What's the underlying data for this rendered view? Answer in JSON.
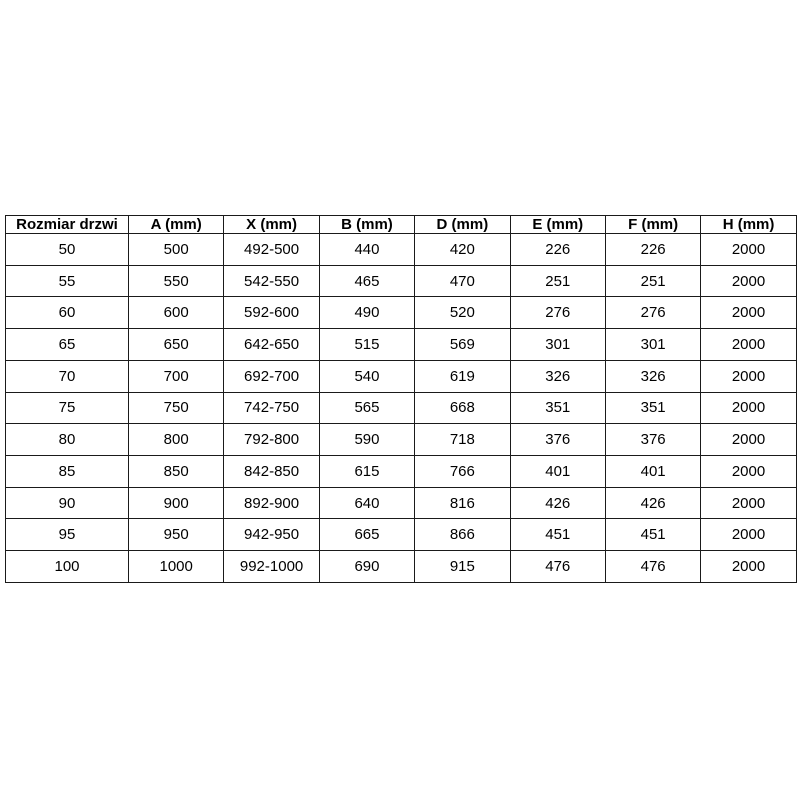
{
  "table": {
    "headers": [
      "Rozmiar drzwi",
      "A (mm)",
      "X (mm)",
      "B (mm)",
      "D (mm)",
      "E (mm)",
      "F (mm)",
      "H (mm)"
    ],
    "rows": [
      [
        "50",
        "500",
        "492-500",
        "440",
        "420",
        "226",
        "226",
        "2000"
      ],
      [
        "55",
        "550",
        "542-550",
        "465",
        "470",
        "251",
        "251",
        "2000"
      ],
      [
        "60",
        "600",
        "592-600",
        "490",
        "520",
        "276",
        "276",
        "2000"
      ],
      [
        "65",
        "650",
        "642-650",
        "515",
        "569",
        "301",
        "301",
        "2000"
      ],
      [
        "70",
        "700",
        "692-700",
        "540",
        "619",
        "326",
        "326",
        "2000"
      ],
      [
        "75",
        "750",
        "742-750",
        "565",
        "668",
        "351",
        "351",
        "2000"
      ],
      [
        "80",
        "800",
        "792-800",
        "590",
        "718",
        "376",
        "376",
        "2000"
      ],
      [
        "85",
        "850",
        "842-850",
        "615",
        "766",
        "401",
        "401",
        "2000"
      ],
      [
        "90",
        "900",
        "892-900",
        "640",
        "816",
        "426",
        "426",
        "2000"
      ],
      [
        "95",
        "950",
        "942-950",
        "665",
        "866",
        "451",
        "451",
        "2000"
      ],
      [
        "100",
        "1000",
        "992-1000",
        "690",
        "915",
        "476",
        "476",
        "2000"
      ]
    ]
  },
  "colors": {
    "background": "#ffffff",
    "border": "#1a1a1a",
    "text": "#000000"
  }
}
